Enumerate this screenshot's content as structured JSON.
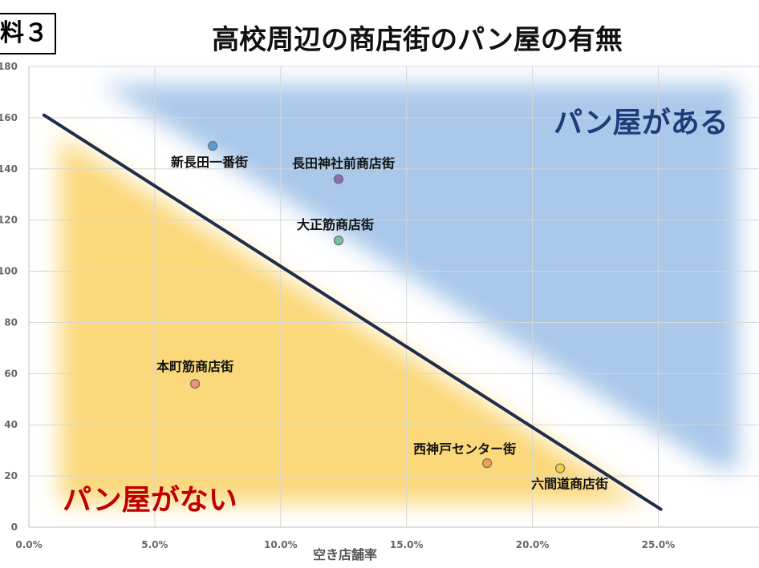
{
  "header": {
    "badge": "料３",
    "title": "高校周辺の商店街のパン屋の有無"
  },
  "chart_data": {
    "type": "scatter",
    "title": "高校周辺の商店街のパン屋の有無",
    "xlabel": "空き店舗率",
    "ylabel": "",
    "xlim": [
      0,
      0.29
    ],
    "ylim": [
      0,
      180
    ],
    "x_ticks": [
      "0.0%",
      "5.0%",
      "10.0%",
      "15.0%",
      "20.0%",
      "25.0%"
    ],
    "x_tick_values": [
      0,
      0.05,
      0.1,
      0.15,
      0.2,
      0.25
    ],
    "y_ticks": [
      "0",
      "20",
      "40",
      "60",
      "80",
      "100",
      "120",
      "140",
      "160",
      "180"
    ],
    "y_tick_values": [
      0,
      20,
      40,
      60,
      80,
      100,
      120,
      140,
      160,
      180
    ],
    "grid": true,
    "points": [
      {
        "label": "新長田一番街",
        "x": 0.073,
        "y": 149,
        "color": "#5b9bd5"
      },
      {
        "label": "長田神社前商店街",
        "x": 0.123,
        "y": 136,
        "color": "#8e6bb0"
      },
      {
        "label": "大正筋商店街",
        "x": 0.123,
        "y": 112,
        "color": "#6fc4a3"
      },
      {
        "label": "本町筋商店街",
        "x": 0.066,
        "y": 56,
        "color": "#e8967a"
      },
      {
        "label": "西神戸センター街",
        "x": 0.182,
        "y": 25,
        "color": "#f0a050"
      },
      {
        "label": "六間道商店街",
        "x": 0.211,
        "y": 23,
        "color": "#f2d13a"
      }
    ],
    "divider": {
      "x1": 0.006,
      "y1": 161,
      "x2": 0.251,
      "y2": 7,
      "color": "#1f2d4a"
    },
    "regions": [
      {
        "label": "パン屋がある",
        "color": "#1f3c78"
      },
      {
        "label": "パン屋がない",
        "color": "#c00000"
      }
    ]
  }
}
